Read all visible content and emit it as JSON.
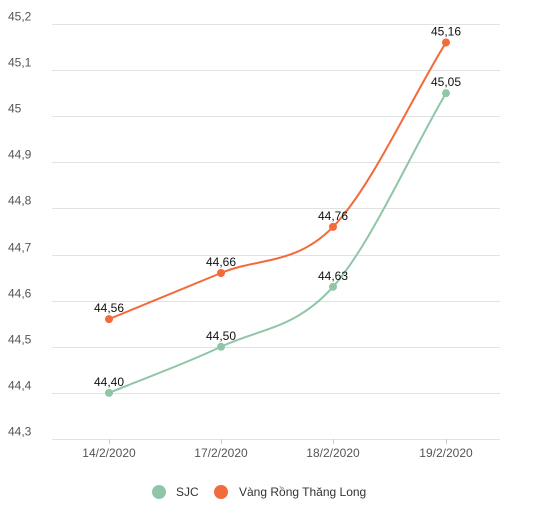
{
  "chart_data": {
    "type": "line",
    "categories": [
      "14/2/2020",
      "17/2/2020",
      "18/2/2020",
      "19/2/2020"
    ],
    "y_ticks": [
      "44,3",
      "44,4",
      "44,5",
      "44,6",
      "44,7",
      "44,8",
      "44,9",
      "45",
      "45,1",
      "45,2"
    ],
    "ylim": [
      44.3,
      45.2
    ],
    "grid": "horizontal",
    "legend_position": "bottom",
    "series": [
      {
        "name": "SJC",
        "color": "#8fc6a8",
        "values": [
          44.4,
          44.5,
          44.63,
          45.05
        ],
        "labels": [
          "44,40",
          "44,50",
          "44,63",
          "45,05"
        ]
      },
      {
        "name": "Vàng Rồng Thăng Long",
        "color": "#f26b3a",
        "values": [
          44.56,
          44.66,
          44.76,
          45.16
        ],
        "labels": [
          "44,56",
          "44,66",
          "44,76",
          "45,16"
        ]
      }
    ]
  }
}
